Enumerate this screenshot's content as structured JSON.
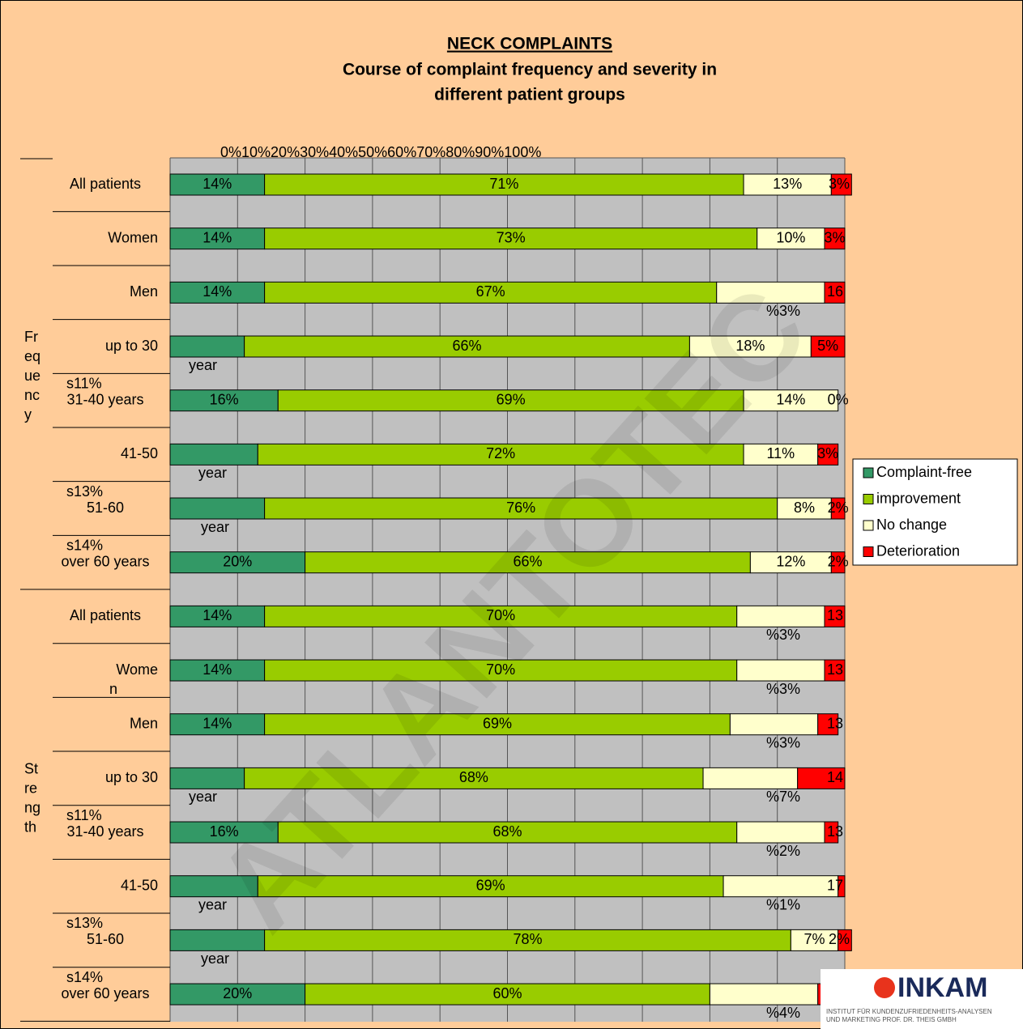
{
  "chart_data": {
    "type": "bar",
    "orientation": "horizontal",
    "stacked": true,
    "title": "NECK COMPLAINTS",
    "subtitle": [
      "Course of complaint frequency and severity in",
      "different patient groups"
    ],
    "xlim": [
      0,
      100
    ],
    "xticks": [
      {
        "value": 0,
        "label": "0%"
      },
      {
        "value": 10,
        "label": "10%"
      },
      {
        "value": 20,
        "label": "20%"
      },
      {
        "value": 30,
        "label": "30%"
      },
      {
        "value": 40,
        "label": "40%"
      },
      {
        "value": 50,
        "label": "50%"
      },
      {
        "value": 60,
        "label": "60%"
      },
      {
        "value": 70,
        "label": "70%"
      },
      {
        "value": 80,
        "label": "80%"
      },
      {
        "value": 90,
        "label": "90%"
      },
      {
        "value": 100,
        "label": "100%"
      }
    ],
    "grid": true,
    "legend": "right",
    "groups": [
      {
        "lines": [
          "Fr",
          "eq",
          "ue",
          "nc",
          "y"
        ],
        "rows": [
          {
            "label": "All patients"
          },
          {
            "label": "Women"
          },
          {
            "label": "Men",
            "note_right": "%3%"
          },
          {
            "label": "up to 30",
            "note_left": "year"
          },
          {
            "label": "31-40 years",
            "above": "s11%"
          },
          {
            "label": "41-50",
            "note_left": "year"
          },
          {
            "label": "51-60",
            "above": "s13%",
            "note_left": "year"
          },
          {
            "label": "over 60 years",
            "above": "s14%"
          }
        ]
      },
      {
        "lines": [
          "St",
          "re",
          "ng",
          "th"
        ],
        "rows": [
          {
            "label": "All patients",
            "note_right": "%3%"
          },
          {
            "label": "Wome",
            "note_left": "n",
            "note_right": "%3%"
          },
          {
            "label": "Men",
            "note_right": "%3%"
          },
          {
            "label": "up to 30",
            "note_left": "year",
            "note_right": "%7%"
          },
          {
            "label": "31-40 years",
            "above": "s11%",
            "note_right": "%2%"
          },
          {
            "label": "41-50",
            "note_left": "year",
            "note_right": "%1%"
          },
          {
            "label": "51-60",
            "above": "s13%",
            "note_left": "year"
          },
          {
            "label": "over 60 years",
            "above": "s14%",
            "note_right": "%4%"
          }
        ]
      }
    ],
    "series": [
      {
        "name": "Complaint-free",
        "color": "#339966",
        "values": [
          14,
          14,
          14,
          11,
          16,
          13,
          14,
          20,
          14,
          14,
          14,
          11,
          16,
          13,
          14,
          20
        ],
        "value_labels": [
          "14%",
          "14%",
          "14%",
          null,
          "16%",
          null,
          null,
          "20%",
          "14%",
          "14%",
          "14%",
          null,
          "16%",
          null,
          null,
          "20%"
        ]
      },
      {
        "name": "improvement",
        "color": "#99cc00",
        "values": [
          71,
          73,
          67,
          66,
          69,
          72,
          76,
          66,
          70,
          70,
          69,
          68,
          68,
          69,
          78,
          60
        ],
        "value_labels": [
          "71%",
          "73%",
          "67%",
          "66%",
          "69%",
          "72%",
          "76%",
          "66%",
          "70%",
          "70%",
          "69%",
          "68%",
          "68%",
          "69%",
          "78%",
          "60%"
        ]
      },
      {
        "name": "No change",
        "color": "#ffffcc",
        "values": [
          13,
          10,
          16,
          18,
          14,
          11,
          8,
          12,
          13,
          13,
          13,
          14,
          13,
          17,
          7,
          16
        ],
        "value_labels": [
          "13%",
          "10%",
          "16",
          "18%",
          "14%",
          "11%",
          "8%",
          "12%",
          "13",
          "13",
          "13",
          "14",
          "13",
          "17",
          "7%",
          "16"
        ]
      },
      {
        "name": "Deterioration",
        "color": "#ff0000",
        "values": [
          3,
          3,
          3,
          5,
          0,
          3,
          2,
          2,
          3,
          3,
          3,
          7,
          2,
          1,
          2,
          4
        ],
        "value_labels": [
          "3%",
          "3%",
          null,
          "5%",
          "0%",
          "3%",
          "2%",
          "2%",
          null,
          null,
          null,
          null,
          null,
          null,
          "2%",
          null
        ]
      }
    ],
    "watermark": "ATLANTOTEC",
    "logo": {
      "name": "INKAM",
      "lines": [
        "INSTITUT FÜR KUNDENZUFRIEDENHEITS-ANALYSEN",
        "UND MARKETING PROF. DR. THEIS GMBH"
      ]
    }
  }
}
